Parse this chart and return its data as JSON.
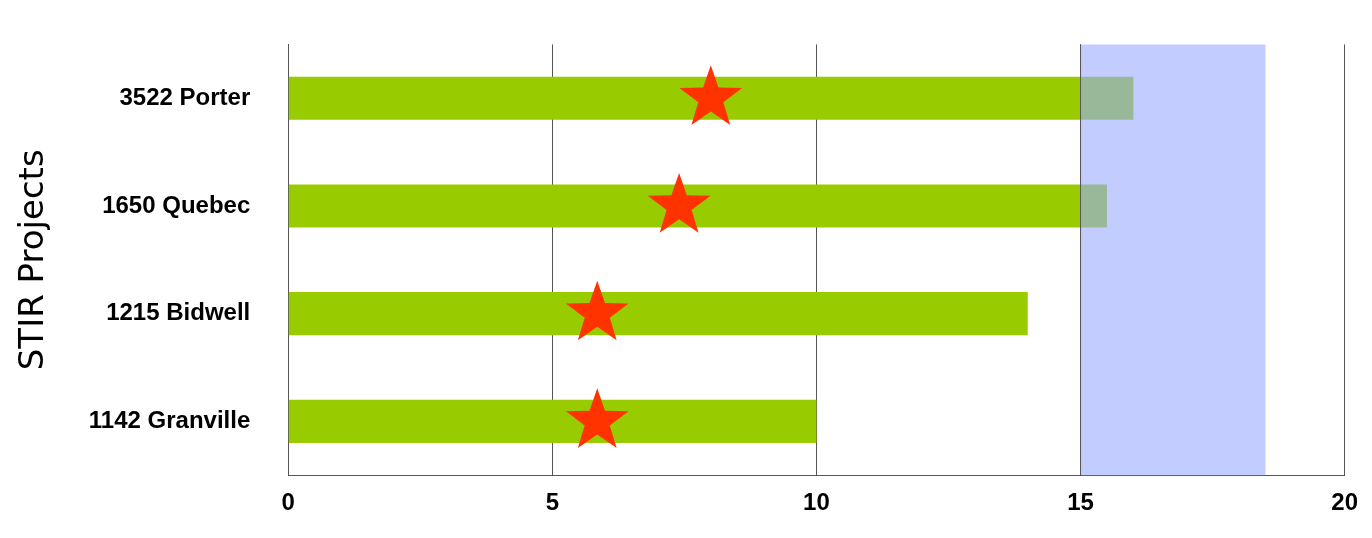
{
  "chart_data": {
    "type": "bar",
    "orientation": "horizontal",
    "ylabel": "STIR Projects",
    "categories": [
      "3522 Porter",
      "1650 Quebec",
      "1215 Bidwell",
      "1142 Granville"
    ],
    "series": [
      {
        "color": "#99cc00",
        "values": [
          16,
          15.5,
          14,
          10
        ]
      },
      {
        "type": "scatter",
        "color": "#ff3300",
        "marker": "star",
        "values": [
          8,
          7.4,
          5.85,
          5.85
        ]
      }
    ],
    "xlim": [
      0,
      20
    ],
    "xticks": [
      0,
      5,
      10,
      15,
      20
    ],
    "grid": "x",
    "bands": [
      {
        "axis": "x",
        "from": 15,
        "to": 18.5,
        "color": "#99aaff"
      }
    ]
  }
}
